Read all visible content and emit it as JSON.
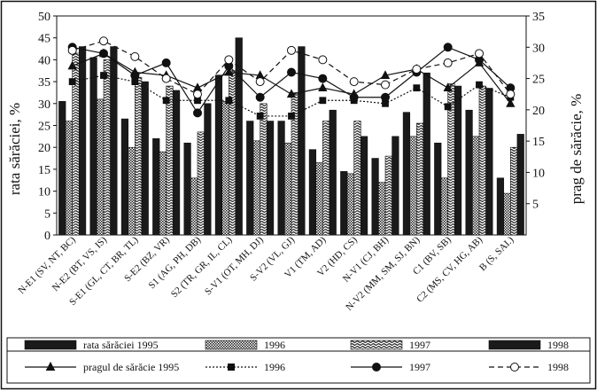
{
  "chart_data": {
    "type": "bar",
    "title": "",
    "ylabel": "rata sărăciei, %",
    "y2label": "prag de sărăcie, %",
    "ylim": [
      0,
      50
    ],
    "y2lim": [
      0,
      35
    ],
    "yticks": [
      0,
      5,
      10,
      15,
      20,
      25,
      30,
      35,
      40,
      45,
      50
    ],
    "y2ticks": [
      5,
      10,
      15,
      20,
      25,
      30,
      35
    ],
    "grid": false,
    "legend_position": "bottom",
    "categories": [
      "N-E1 (SV, NT, BC)",
      "N-E2 (BT, VS, IS)",
      "S-E1 (GL, CT, BR, TL)",
      "S-E2 (BZ, VR)",
      "S1 (AG, PH, DB)",
      "S2 (TR, GR, IL, CL)",
      "S-V1 (OT, MH, DJ)",
      "S-V2 (VL, GJ)",
      "V1 (TM, AD)",
      "V2 (HD, CS)",
      "N-V1 (CJ, BH)",
      "N-V2 (MM, SM, SJ, BN)",
      "C1 (BV, SB)",
      "C2 (MS, CV, HG, AB)",
      "B (S, SAI.)"
    ],
    "series": [
      {
        "name": "rata sărăciei 1995",
        "kind": "bar",
        "axis": "left",
        "values": [
          30.5,
          40.5,
          26.5,
          22,
          21,
          36.5,
          26,
          26,
          19.5,
          14.5,
          17.5,
          28,
          21,
          28.5,
          13
        ]
      },
      {
        "name": "1996",
        "kind": "bar",
        "axis": "left",
        "values": [
          26,
          31,
          20,
          19,
          13,
          30.5,
          21.5,
          21,
          16.5,
          14,
          12,
          22.5,
          13,
          22.5,
          9.5
        ]
      },
      {
        "name": "1997",
        "kind": "bar",
        "axis": "left",
        "values": [
          41.5,
          40,
          36,
          34,
          23.5,
          37.5,
          30,
          32.5,
          26,
          26,
          18,
          25.5,
          34.5,
          34,
          20
        ]
      },
      {
        "name": "1998",
        "kind": "bar",
        "axis": "left",
        "values": [
          43,
          43,
          35,
          33,
          30,
          45,
          26,
          43,
          28.5,
          22.5,
          22.5,
          37,
          34,
          33.5,
          23
        ]
      },
      {
        "name": "pragul de sărăcie 1995",
        "kind": "line",
        "axis": "right",
        "values": [
          27,
          29,
          26,
          25.5,
          23.5,
          26,
          25.5,
          22.5,
          23.5,
          22.5,
          25.5,
          26.5,
          23.5,
          27.5,
          21
        ]
      },
      {
        "name": "1996",
        "kind": "line",
        "axis": "right",
        "values": [
          24.5,
          25.5,
          24.5,
          21.5,
          21.5,
          21.5,
          19,
          19,
          21.5,
          21.5,
          21,
          23.5,
          20.5,
          24,
          22
        ]
      },
      {
        "name": "1997",
        "kind": "line",
        "axis": "right",
        "values": [
          30,
          29,
          25.5,
          27.5,
          19.5,
          27,
          22,
          26,
          25,
          22,
          22,
          26,
          30,
          28,
          23.5
        ]
      },
      {
        "name": "1998",
        "kind": "line",
        "axis": "right",
        "values": [
          29.5,
          31,
          28.5,
          25,
          22.5,
          28,
          24.5,
          29.5,
          28,
          24.5,
          24,
          26.5,
          27.5,
          29,
          22.5
        ]
      }
    ],
    "legend": {
      "row1": [
        "rata sărăciei 1995",
        "1996",
        "1997",
        "1998"
      ],
      "row2": [
        "pragul de sărăcie 1995",
        "1996",
        "1997",
        "1998"
      ]
    }
  }
}
